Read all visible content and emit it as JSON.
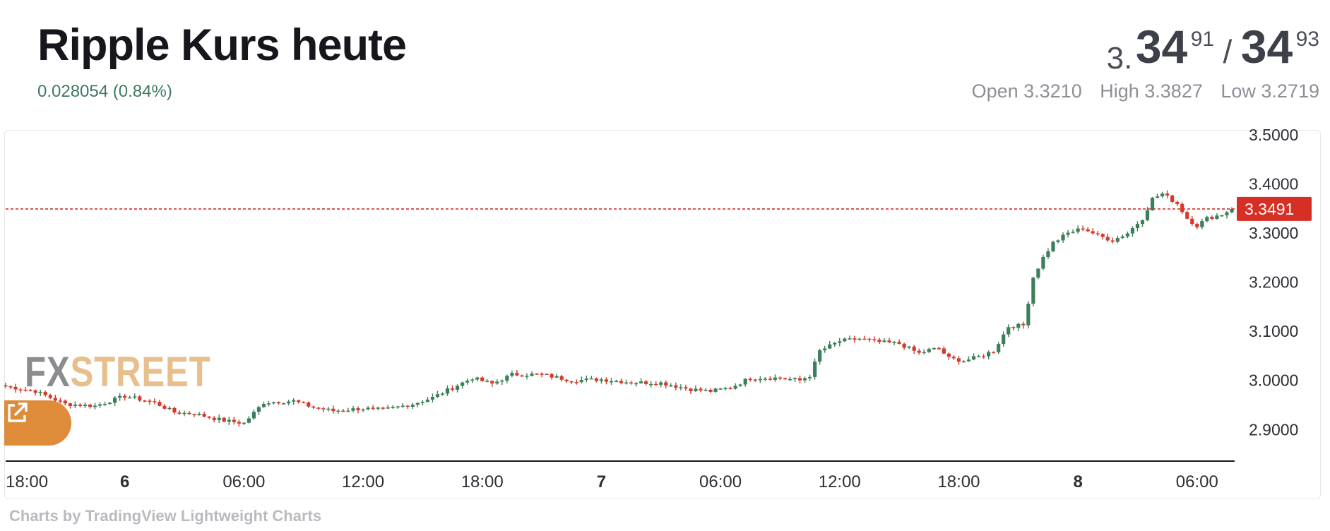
{
  "header": {
    "title": "Ripple Kurs heute",
    "change": "0.028054 (0.84%)",
    "bid_prefix": "3.",
    "bid_big": "34",
    "bid_small": "91",
    "ask_sep": "/",
    "ask_big": "34",
    "ask_small": "93",
    "open": "Open 3.3210",
    "high": "High 3.3827",
    "low": "Low 3.2719"
  },
  "logo": {
    "fx": "FX",
    "street": "STREET"
  },
  "credit": "Charts by TradingView Lightweight Charts",
  "colors": {
    "up": "#3d7f5a",
    "down": "#d33a2c",
    "current": "#d62f25",
    "accent": "#de8c3a"
  },
  "icons": {
    "external_link": "external-link-icon"
  },
  "chart_data": {
    "type": "candlestick",
    "ylim": [
      2.84,
      3.51
    ],
    "y_ticks": [
      "3.5000",
      "3.4000",
      "3.3000",
      "3.2000",
      "3.1000",
      "3.0000",
      "2.9000"
    ],
    "y_tick_values": [
      3.5,
      3.4,
      3.3,
      3.2,
      3.1,
      3.0,
      2.9
    ],
    "x_ticks": [
      {
        "label": "18:00",
        "idx": 0,
        "bold": false
      },
      {
        "label": "6",
        "idx": 24,
        "bold": true
      },
      {
        "label": "06:00",
        "idx": 48,
        "bold": false
      },
      {
        "label": "12:00",
        "idx": 72,
        "bold": false
      },
      {
        "label": "18:00",
        "idx": 96,
        "bold": false
      },
      {
        "label": "7",
        "idx": 120,
        "bold": true
      },
      {
        "label": "06:00",
        "idx": 144,
        "bold": false
      },
      {
        "label": "12:00",
        "idx": 168,
        "bold": false
      },
      {
        "label": "18:00",
        "idx": 192,
        "bold": false
      },
      {
        "label": "8",
        "idx": 216,
        "bold": true
      },
      {
        "label": "06:00",
        "idx": 240,
        "bold": false
      }
    ],
    "current_price": 3.3491,
    "current_label": "3.3491",
    "anchors": [
      [
        0,
        2.988
      ],
      [
        6,
        2.978
      ],
      [
        12,
        2.952
      ],
      [
        18,
        2.948
      ],
      [
        24,
        2.968
      ],
      [
        30,
        2.955
      ],
      [
        34,
        2.935
      ],
      [
        38,
        2.932
      ],
      [
        44,
        2.918
      ],
      [
        48,
        2.913
      ],
      [
        52,
        2.955
      ],
      [
        58,
        2.958
      ],
      [
        62,
        2.945
      ],
      [
        66,
        2.938
      ],
      [
        72,
        2.943
      ],
      [
        76,
        2.94
      ],
      [
        82,
        2.952
      ],
      [
        86,
        2.965
      ],
      [
        90,
        2.985
      ],
      [
        94,
        3.005
      ],
      [
        98,
        2.993
      ],
      [
        102,
        3.012
      ],
      [
        108,
        3.012
      ],
      [
        114,
        3.0
      ],
      [
        120,
        3.002
      ],
      [
        126,
        2.996
      ],
      [
        132,
        2.995
      ],
      [
        138,
        2.982
      ],
      [
        142,
        2.978
      ],
      [
        146,
        2.985
      ],
      [
        150,
        3.005
      ],
      [
        156,
        3.005
      ],
      [
        160,
        3.0
      ],
      [
        162,
        3.01
      ],
      [
        164,
        3.06
      ],
      [
        168,
        3.08
      ],
      [
        172,
        3.085
      ],
      [
        176,
        3.078
      ],
      [
        180,
        3.075
      ],
      [
        184,
        3.055
      ],
      [
        186,
        3.062
      ],
      [
        188,
        3.065
      ],
      [
        190,
        3.045
      ],
      [
        193,
        3.04
      ],
      [
        196,
        3.048
      ],
      [
        199,
        3.06
      ],
      [
        202,
        3.11
      ],
      [
        205,
        3.112
      ],
      [
        206,
        3.16
      ],
      [
        207,
        3.21
      ],
      [
        209,
        3.25
      ],
      [
        211,
        3.28
      ],
      [
        214,
        3.3
      ],
      [
        217,
        3.31
      ],
      [
        220,
        3.295
      ],
      [
        223,
        3.285
      ],
      [
        226,
        3.3
      ],
      [
        229,
        3.33
      ],
      [
        231,
        3.37
      ],
      [
        233,
        3.38
      ],
      [
        236,
        3.36
      ],
      [
        238,
        3.33
      ],
      [
        240,
        3.315
      ],
      [
        242,
        3.33
      ],
      [
        245,
        3.338
      ],
      [
        247,
        3.349
      ]
    ]
  }
}
